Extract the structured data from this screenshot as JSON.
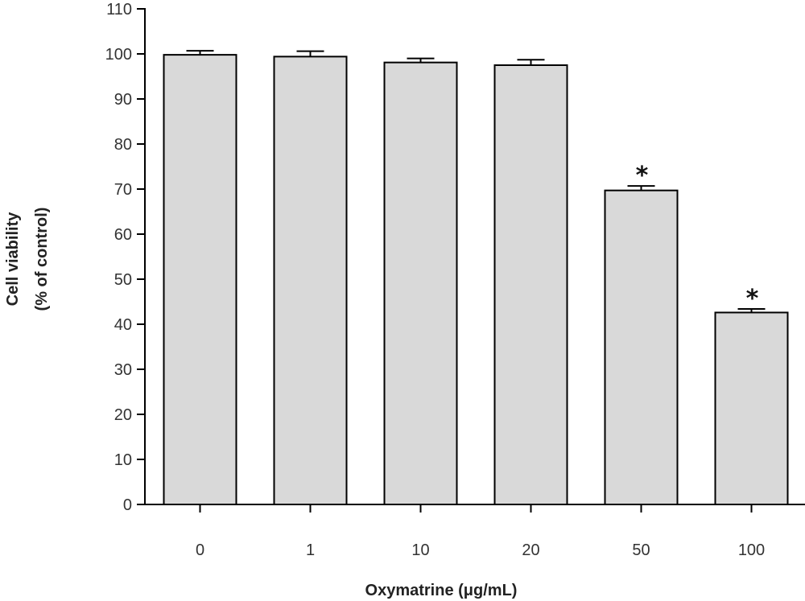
{
  "chart_data": {
    "type": "bar",
    "categories": [
      "0",
      "1",
      "10",
      "20",
      "50",
      "100"
    ],
    "values": [
      99.8,
      99.4,
      98.1,
      97.5,
      69.7,
      42.6
    ],
    "error": [
      0.9,
      1.2,
      0.9,
      1.2,
      1.0,
      0.8
    ],
    "significance": [
      "",
      "",
      "",
      "",
      "*",
      "*"
    ],
    "xlabel": "Oxymatrine (μg/mL)",
    "ylabel_lines": [
      "Cell viability",
      "(% of control)"
    ],
    "ylim": [
      0,
      110
    ],
    "yticks": [
      0,
      10,
      20,
      30,
      40,
      50,
      60,
      70,
      80,
      90,
      100,
      110
    ],
    "bar_color": "#d9d9d9",
    "edge_color": "#000000",
    "grid": false
  }
}
